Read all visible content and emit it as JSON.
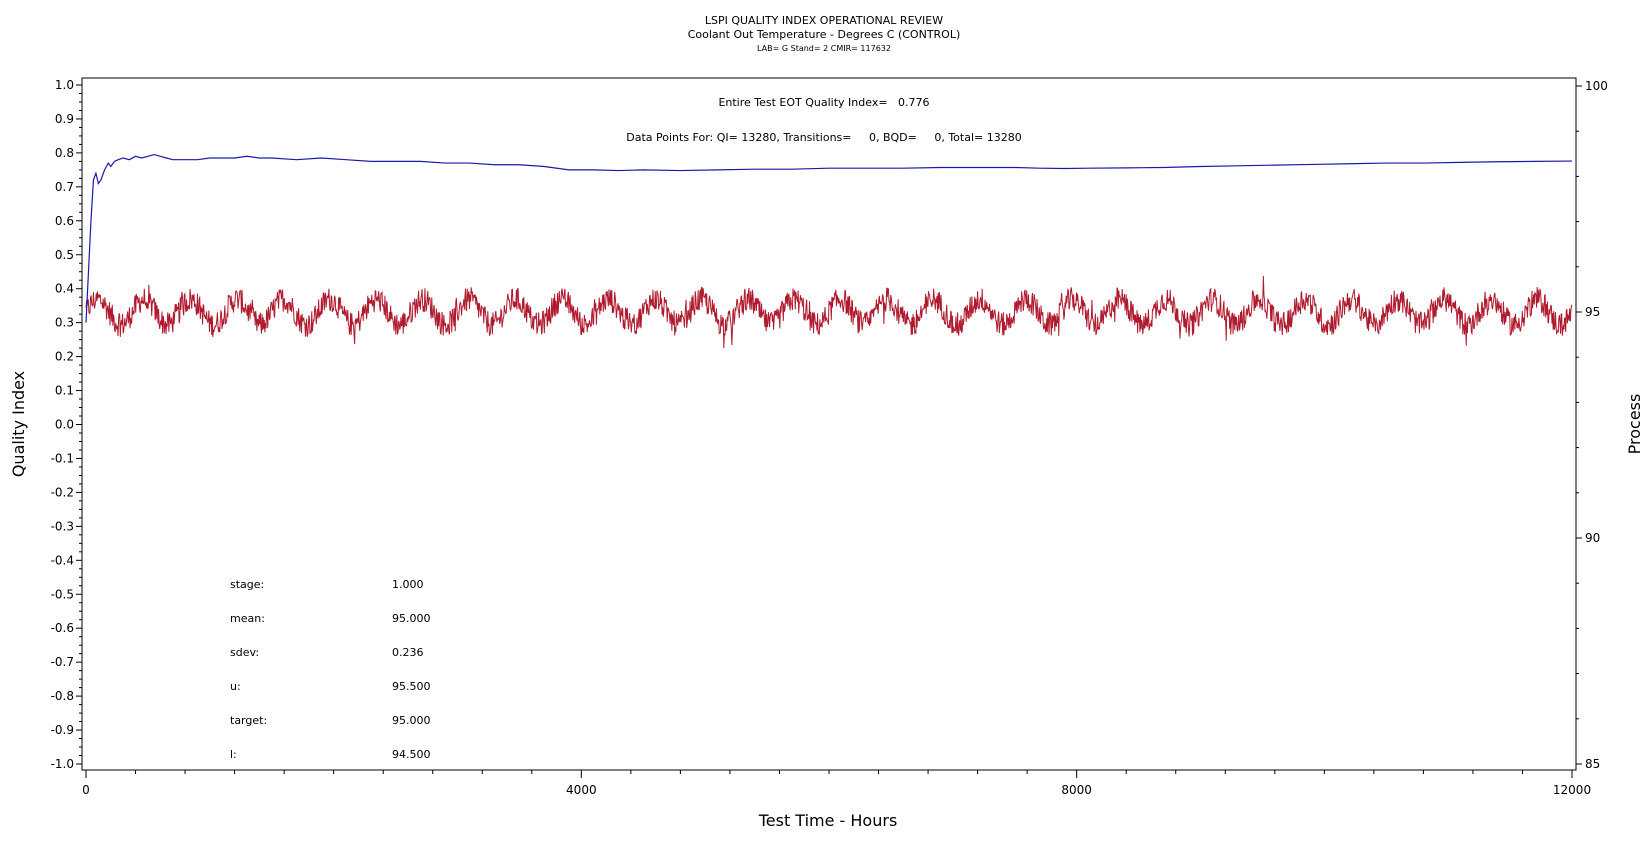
{
  "chart_data": {
    "type": "line",
    "title": "LSPI QUALITY INDEX OPERATIONAL REVIEW",
    "subtitle": "Coolant Out Temperature - Degrees C (CONTROL)",
    "subsubtitle": "LAB= G Stand= 2 CMIR= 117632",
    "xlabel": "Test Time - Hours",
    "ylabel_left": "Quality Index",
    "ylabel_right": "Process",
    "xlim": [
      0,
      12000
    ],
    "ylim_left": [
      -1.0,
      1.0
    ],
    "ylim_right": [
      85,
      100
    ],
    "x_ticks": [
      0,
      4000,
      8000,
      12000
    ],
    "x_tick_labels": [
      "0",
      "4000",
      "8000",
      "12000"
    ],
    "y_left_ticks": [
      1.0,
      0.9,
      0.8,
      0.7,
      0.6,
      0.5,
      0.4,
      0.3,
      0.2,
      0.1,
      0.0,
      -0.1,
      -0.2,
      -0.3,
      -0.4,
      -0.5,
      -0.6,
      -0.7,
      -0.8,
      -0.9,
      -1.0
    ],
    "y_left_tick_labels": [
      "1.0",
      "0.9",
      "0.8",
      "0.7",
      "0.6",
      "0.5",
      "0.4",
      "0.3",
      "0.2",
      "0.1",
      "0.0",
      "-0.1",
      "-0.2",
      "-0.3",
      "-0.4",
      "-0.5",
      "-0.6",
      "-0.7",
      "-0.8",
      "-0.9",
      "-1.0"
    ],
    "y_right_ticks": [
      100,
      95,
      90,
      85
    ],
    "y_right_tick_labels": [
      "100",
      "95",
      "90",
      "85"
    ],
    "annotations": {
      "qi_text": "Entire Test EOT Quality Index=   0.776",
      "points_text": "Data Points For: QI= 13280, Transitions=     0, BQD=     0, Total= 13280"
    },
    "stats": [
      {
        "label": "stage:",
        "value": "1.000"
      },
      {
        "label": "mean:",
        "value": "95.000"
      },
      {
        "label": "sdev:",
        "value": "0.236"
      },
      {
        "label": "u:",
        "value": "95.500"
      },
      {
        "label": "target:",
        "value": "95.000"
      },
      {
        "label": "l:",
        "value": "94.500"
      }
    ],
    "series": [
      {
        "axis": "left",
        "color": "#1a1aaa",
        "x": [
          0,
          20,
          40,
          60,
          80,
          100,
          120,
          150,
          180,
          200,
          230,
          260,
          300,
          350,
          400,
          450,
          500,
          550,
          600,
          650,
          700,
          800,
          900,
          1000,
          1100,
          1200,
          1300,
          1400,
          1500,
          1700,
          1900,
          2100,
          2300,
          2500,
          2700,
          2900,
          3100,
          3300,
          3500,
          3700,
          3900,
          4100,
          4300,
          4500,
          4800,
          5100,
          5400,
          5700,
          6000,
          6300,
          6600,
          6900,
          7200,
          7500,
          7700,
          7900,
          8100,
          8400,
          8700,
          9000,
          9300,
          9600,
          9900,
          10200,
          10500,
          10800,
          11100,
          11400,
          11700,
          12000
        ],
        "y": [
          0.3,
          0.45,
          0.6,
          0.72,
          0.74,
          0.71,
          0.72,
          0.75,
          0.77,
          0.76,
          0.775,
          0.78,
          0.785,
          0.78,
          0.79,
          0.785,
          0.79,
          0.795,
          0.79,
          0.785,
          0.78,
          0.78,
          0.78,
          0.785,
          0.785,
          0.785,
          0.79,
          0.785,
          0.785,
          0.78,
          0.785,
          0.78,
          0.775,
          0.775,
          0.775,
          0.77,
          0.77,
          0.765,
          0.765,
          0.76,
          0.75,
          0.75,
          0.748,
          0.75,
          0.748,
          0.75,
          0.752,
          0.752,
          0.755,
          0.755,
          0.755,
          0.757,
          0.757,
          0.757,
          0.755,
          0.754,
          0.755,
          0.756,
          0.757,
          0.76,
          0.762,
          0.764,
          0.766,
          0.768,
          0.77,
          0.77,
          0.772,
          0.774,
          0.775,
          0.776
        ]
      },
      {
        "axis": "right",
        "color": "#b01a2e",
        "baseline": 95.0,
        "envelope": [
          94.2,
          95.8
        ],
        "cycles": 32
      }
    ]
  }
}
